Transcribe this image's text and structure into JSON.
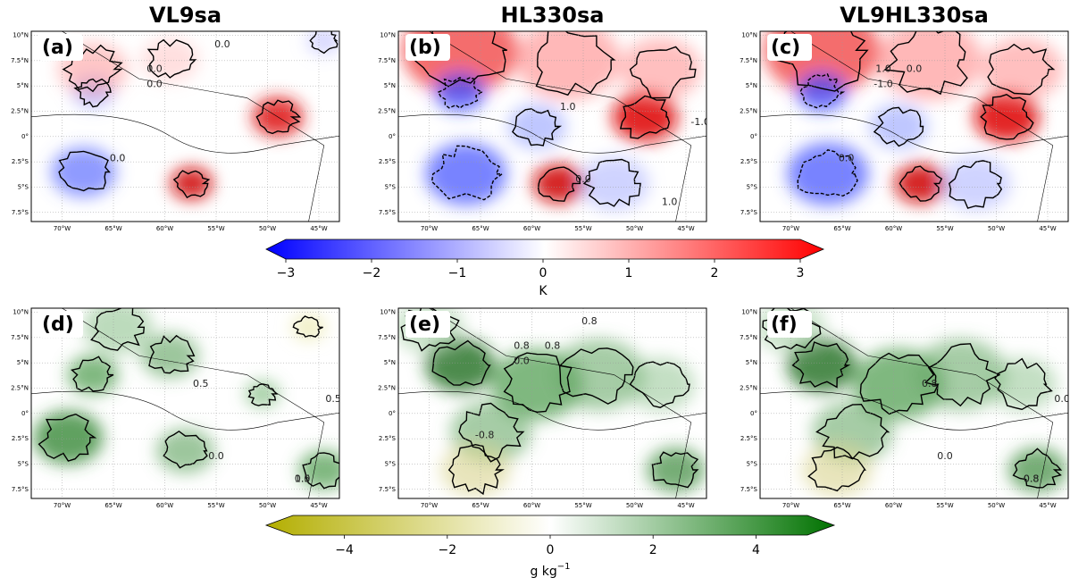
{
  "figure": {
    "column_titles": [
      "VL9sa",
      "HL330sa",
      "VL9HL330sa"
    ],
    "xlim": [
      -73,
      -43
    ],
    "ylim": [
      -8.4,
      10.4
    ],
    "x_ticks": [
      {
        "value": -70,
        "label": "70°W"
      },
      {
        "value": -65,
        "label": "65°W"
      },
      {
        "value": -60,
        "label": "60°W"
      },
      {
        "value": -55,
        "label": "55°W"
      },
      {
        "value": -50,
        "label": "50°W"
      },
      {
        "value": -45,
        "label": "45°W"
      }
    ],
    "y_ticks": [
      {
        "value": 10,
        "label": "10°N"
      },
      {
        "value": 7.5,
        "label": "7.5°N"
      },
      {
        "value": 5,
        "label": "5°N"
      },
      {
        "value": 2.5,
        "label": "2.5°N"
      },
      {
        "value": 0,
        "label": "0°"
      },
      {
        "value": -2.5,
        "label": "2.5°S"
      },
      {
        "value": -5,
        "label": "5°S"
      },
      {
        "value": -7.5,
        "label": "7.5°S"
      }
    ],
    "panels": [
      {
        "label": "(a)",
        "contour_labels": [
          "0.0",
          "0.0",
          "0.0",
          "0.0"
        ]
      },
      {
        "label": "(b)",
        "contour_labels": [
          "-1.0",
          "1.0",
          "0.0",
          "1.0"
        ]
      },
      {
        "label": "(c)",
        "contour_labels": [
          "-1.0",
          "1.0",
          "0.0",
          "0.0"
        ]
      },
      {
        "label": "(d)",
        "contour_labels": [
          "0.5",
          "0.0",
          "0.5",
          "1.0",
          "0.5"
        ]
      },
      {
        "label": "(e)",
        "contour_labels": [
          "0.8",
          "-0.8",
          "0.8",
          "0.8",
          "0.0"
        ]
      },
      {
        "label": "(f)",
        "contour_labels": [
          "0.0",
          "0.8",
          "0.8",
          "0.0",
          "0.8"
        ]
      }
    ],
    "colorbars": [
      {
        "lim": [
          -3,
          3
        ],
        "ticks": [
          {
            "value": -3,
            "label": "−3"
          },
          {
            "value": -2,
            "label": "−2"
          },
          {
            "value": -1,
            "label": "−1"
          },
          {
            "value": 0,
            "label": "0"
          },
          {
            "value": 1,
            "label": "1"
          },
          {
            "value": 2,
            "label": "2"
          },
          {
            "value": 3,
            "label": "3"
          }
        ],
        "units": {
          "base": "K"
        }
      },
      {
        "lim": [
          -5,
          5
        ],
        "ticks": [
          {
            "value": -4,
            "label": "−4"
          },
          {
            "value": -2,
            "label": "−2"
          },
          {
            "value": 0,
            "label": "0"
          },
          {
            "value": 2,
            "label": "2"
          },
          {
            "value": 4,
            "label": "4"
          }
        ],
        "units": {
          "base": "g kg",
          "exponent": "−1"
        }
      }
    ]
  }
}
